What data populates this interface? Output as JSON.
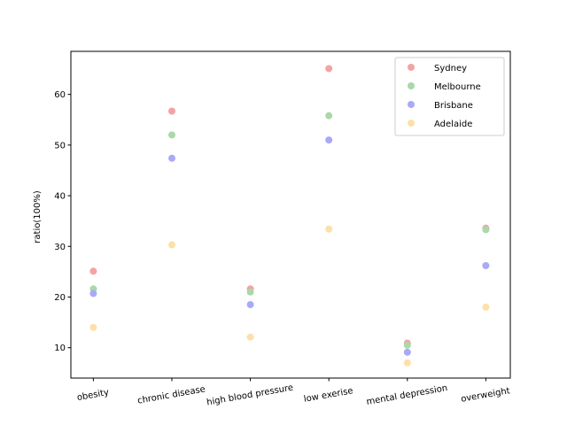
{
  "chart_data": {
    "type": "scatter",
    "title": "",
    "xlabel": "",
    "ylabel": "ratio(100%)",
    "categories": [
      "obesity",
      "chronic disease",
      "high blood pressure",
      "low exerise",
      "mental depression",
      "overweight"
    ],
    "yticks": [
      10,
      20,
      30,
      40,
      50,
      60
    ],
    "ylim": [
      4,
      68.5
    ],
    "grid": false,
    "legend_position": "top-right",
    "series": [
      {
        "name": "Sydney",
        "color": "#f4a3a3",
        "values": [
          25.1,
          56.7,
          21.6,
          65.1,
          10.9,
          33.6
        ]
      },
      {
        "name": "Melbourne",
        "color": "#a9d8a9",
        "values": [
          21.6,
          52.0,
          21.0,
          55.8,
          10.5,
          33.3
        ]
      },
      {
        "name": "Brisbane",
        "color": "#a9a9f8",
        "values": [
          20.7,
          47.4,
          18.5,
          51.0,
          9.1,
          26.2
        ]
      },
      {
        "name": "Adelaide",
        "color": "#fde0a9",
        "values": [
          14.0,
          30.3,
          12.1,
          33.4,
          7.0,
          18.0
        ]
      }
    ]
  }
}
